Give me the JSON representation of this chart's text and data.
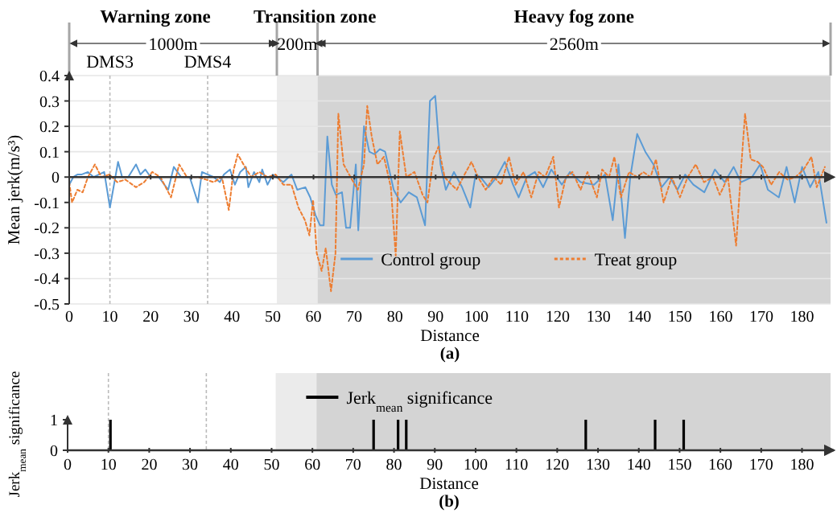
{
  "chart_data": [
    {
      "type": "line",
      "xlabel": "Distance",
      "ylabel": "Mean jerk(m/s³)",
      "xlim": [
        0,
        187
      ],
      "ylim": [
        -0.5,
        0.4
      ],
      "xticks": [
        0,
        10,
        20,
        30,
        40,
        50,
        60,
        70,
        80,
        90,
        100,
        110,
        120,
        130,
        140,
        150,
        160,
        170,
        180
      ],
      "yticks": [
        -0.5,
        -0.4,
        -0.3,
        -0.2,
        -0.1,
        0,
        0.1,
        0.2,
        0.3,
        0.4
      ],
      "grid": "y",
      "legend": "bottom right",
      "bands": [
        {
          "axis": "x",
          "from": 51,
          "to": 61,
          "label": "Transition zone",
          "color": "#ebebeb"
        },
        {
          "axis": "x",
          "from": 61,
          "to": 187,
          "label": "Heavy fog zone",
          "color": "#d4d4d4"
        }
      ],
      "ref_lines": [
        {
          "axis": "x",
          "value": 10,
          "label": "DMS3",
          "line_style": "dotted"
        },
        {
          "axis": "x",
          "value": 34,
          "label": "DMS4",
          "line_style": "dotted"
        }
      ],
      "annotations": [
        "Warning zone",
        "1000m",
        "200m",
        "2560m",
        "(a)"
      ],
      "series": [
        {
          "name": "Control group",
          "color": "#5b9bd5",
          "line_style": "solid",
          "x": [
            0,
            1,
            2,
            3,
            4.6,
            6,
            8.6,
            10,
            12,
            13,
            14.5,
            16.4,
            17.5,
            18.7,
            20,
            22,
            24.3,
            25.7,
            27.5,
            29.6,
            31.6,
            32.6,
            35.5,
            37,
            38,
            39.5,
            40.7,
            42,
            43.4,
            44,
            45.4,
            46.7,
            47.4,
            48.7,
            50,
            52.6,
            54.6,
            56,
            58,
            59.2,
            60.5,
            61.6,
            62.5,
            63.4,
            64.5,
            65.5,
            67,
            68,
            69,
            70.4,
            71,
            72.4,
            73.7,
            75,
            76.3,
            77.6,
            79.7,
            81.4,
            83.4,
            85.4,
            87.4,
            88.6,
            89.9,
            91.2,
            92.5,
            94.5,
            96.5,
            98.5,
            99.8,
            101,
            103,
            105,
            107,
            109,
            110.4,
            112.4,
            114.4,
            116.4,
            118.4,
            121,
            123,
            125.6,
            128.9,
            131.6,
            133.5,
            134.9,
            136.5,
            137.8,
            139.5,
            141.5,
            143.5,
            145.5,
            147.5,
            149.4,
            151.3,
            153.3,
            156,
            158.6,
            161,
            163.2,
            165,
            167.7,
            169.7,
            171.6,
            174.3,
            176.2,
            178.2,
            180,
            182,
            184,
            186
          ],
          "values": [
            -0.03,
            0,
            0.01,
            0.01,
            0.02,
            0,
            0.02,
            -0.12,
            0.06,
            0,
            0,
            0.05,
            0.01,
            0.03,
            0,
            0,
            -0.05,
            0.04,
            0,
            0,
            -0.1,
            0.02,
            0,
            -0.02,
            0.01,
            0.03,
            -0.03,
            0.02,
            0.04,
            -0.04,
            0.02,
            -0.02,
            0.03,
            -0.03,
            0.01,
            -0.02,
            0.01,
            -0.05,
            -0.04,
            -0.08,
            -0.15,
            -0.19,
            -0.19,
            0.16,
            -0.03,
            -0.07,
            -0.06,
            -0.2,
            -0.2,
            0.05,
            -0.21,
            0.2,
            0.1,
            0.09,
            0.11,
            0.1,
            -0.05,
            -0.1,
            -0.06,
            -0.08,
            -0.19,
            0.3,
            0.32,
            0.05,
            -0.05,
            0.02,
            -0.04,
            -0.12,
            0.01,
            0,
            -0.04,
            0,
            0.06,
            -0.03,
            -0.08,
            0,
            0.02,
            -0.04,
            0.03,
            -0.03,
            0.02,
            -0.02,
            -0.03,
            0.01,
            -0.17,
            0.05,
            -0.24,
            0,
            0.17,
            0.1,
            0.05,
            -0.04,
            0,
            -0.05,
            0.01,
            -0.03,
            -0.06,
            0.03,
            -0.02,
            0.04,
            -0.02,
            0,
            0.05,
            -0.05,
            -0.08,
            0.04,
            -0.1,
            0.04,
            -0.04,
            0.02,
            -0.18
          ]
        },
        {
          "name": "Treat group",
          "color": "#ed7d31",
          "line_style": "dotted",
          "x": [
            0,
            0.7,
            2,
            3.3,
            4.6,
            6.3,
            7.9,
            9.9,
            11.8,
            13.8,
            16.4,
            18.4,
            20.4,
            22.4,
            25,
            27,
            28.9,
            31.6,
            33.6,
            35.5,
            37.5,
            39.2,
            40.4,
            41.4,
            42.8,
            44.7,
            46.7,
            48.7,
            50.7,
            52.6,
            54.6,
            56.3,
            57.9,
            59,
            59.9,
            60.8,
            62,
            63,
            64.3,
            65.4,
            66.1,
            67.4,
            69.1,
            70.9,
            72.4,
            73.2,
            74.3,
            75.7,
            77.3,
            79,
            80.2,
            81.2,
            82.8,
            84.8,
            86.8,
            88,
            89.4,
            90.7,
            92.2,
            93.9,
            95.2,
            97.1,
            98.8,
            100.4,
            102.3,
            104.3,
            106.1,
            108,
            109.6,
            111.6,
            113.5,
            115.3,
            116.9,
            118.9,
            120.3,
            122,
            123.6,
            125.6,
            127.3,
            129.6,
            130.9,
            132.6,
            133.9,
            135.5,
            137.5,
            139.5,
            141,
            142.8,
            144.1,
            146,
            148,
            150,
            151.9,
            153.9,
            155.9,
            158.1,
            159.8,
            161.8,
            163.8,
            165.1,
            166,
            167.4,
            169.1,
            170.4,
            172.4,
            174.4,
            176.4,
            178.4,
            180.4,
            182.3,
            183.6,
            185.6
          ],
          "values": [
            -0.02,
            -0.1,
            -0.05,
            -0.06,
            0,
            0.05,
            0,
            0.01,
            -0.02,
            -0.01,
            -0.04,
            -0.02,
            0.02,
            0,
            -0.08,
            0.05,
            0,
            0,
            -0.01,
            -0.02,
            0,
            -0.13,
            0.03,
            0.09,
            0.05,
            0,
            0.02,
            0,
            0.01,
            -0.03,
            -0.03,
            -0.12,
            -0.17,
            -0.23,
            -0.09,
            -0.3,
            -0.37,
            -0.28,
            -0.45,
            -0.3,
            0.25,
            0.05,
            0,
            -0.05,
            0.05,
            0.28,
            0.16,
            0.05,
            0.08,
            -0.04,
            -0.31,
            0.18,
            0,
            0.02,
            -0.07,
            -0.1,
            0.07,
            0.12,
            0,
            -0.03,
            -0.05,
            0.01,
            0.06,
            0,
            -0.05,
            0,
            -0.03,
            0.08,
            -0.03,
            0.02,
            -0.08,
            0.02,
            0,
            0.08,
            -0.12,
            0,
            0.02,
            -0.05,
            0.02,
            -0.08,
            0.03,
            0,
            0.08,
            -0.08,
            0.02,
            0,
            0.02,
            0,
            0.07,
            -0.1,
            0,
            -0.08,
            0,
            0.05,
            -0.02,
            0,
            -0.07,
            0,
            -0.27,
            0.05,
            0.25,
            0.07,
            0.06,
            0.04,
            -0.03,
            0.02,
            -0.01,
            0,
            0.03,
            0.08,
            -0.04,
            0.04
          ]
        }
      ]
    },
    {
      "type": "bar",
      "xlabel": "Distance",
      "ylabel": "Jerk$_{mean}$ significance",
      "xlim": [
        0,
        187
      ],
      "ylim": [
        0,
        1
      ],
      "xticks": [
        0,
        10,
        20,
        30,
        40,
        50,
        60,
        70,
        80,
        90,
        100,
        110,
        120,
        130,
        140,
        150,
        160,
        170,
        180
      ],
      "yticks": [
        0,
        1
      ],
      "legend": "top",
      "bands": [
        {
          "axis": "x",
          "from": 51,
          "to": 61,
          "color": "#ebebeb"
        },
        {
          "axis": "x",
          "from": 61,
          "to": 187,
          "color": "#d4d4d4"
        }
      ],
      "ref_lines": [
        {
          "axis": "x",
          "value": 10,
          "line_style": "dotted"
        },
        {
          "axis": "x",
          "value": 34,
          "line_style": "dotted"
        }
      ],
      "annotations": [
        "(b)"
      ],
      "series": [
        {
          "name": "Jerk$_{mean}$ significance",
          "color": "#000000",
          "x": [
            10.5,
            75,
            81,
            83,
            127,
            144,
            151
          ],
          "values": [
            1,
            1,
            1,
            1,
            1,
            1,
            1
          ]
        }
      ]
    }
  ]
}
